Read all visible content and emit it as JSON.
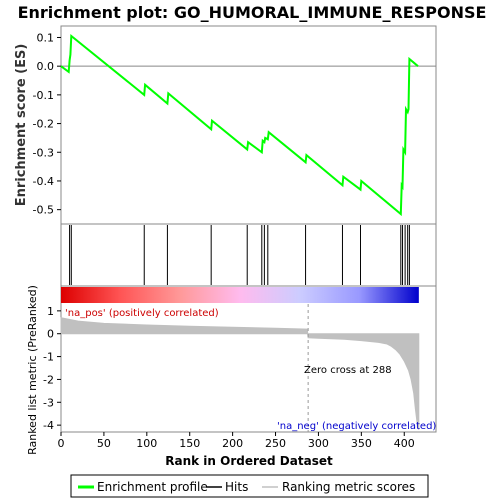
{
  "chart_data": {
    "type": "line",
    "title": "Enrichment plot: GO_HUMORAL_IMMUNE_RESPONSE",
    "top_panel": {
      "ylabel": "Enrichment score (ES)",
      "ylim": [
        -0.55,
        0.14
      ],
      "yticks": [
        0.1,
        0.0,
        -0.1,
        -0.2,
        -0.3,
        -0.4,
        -0.5
      ],
      "ytick_labels": [
        "0.1",
        "0.0",
        "-0.1",
        "-0.2",
        "-0.3",
        "-0.4",
        "-0.5"
      ],
      "zero_line": true,
      "series": [
        {
          "name": "Enrichment profile",
          "color": "#00ff00",
          "x": [
            0,
            9,
            10,
            11,
            12,
            97,
            98,
            124,
            125,
            175,
            176,
            217,
            218,
            234,
            235,
            237,
            238,
            241,
            242,
            285,
            286,
            328,
            329,
            349,
            350,
            396,
            397,
            398,
            399,
            401,
            402,
            404,
            405,
            406,
            416
          ],
          "y": [
            0.0,
            -0.02,
            0.02,
            0.04,
            0.105,
            -0.1,
            -0.065,
            -0.13,
            -0.095,
            -0.22,
            -0.19,
            -0.29,
            -0.265,
            -0.3,
            -0.26,
            -0.265,
            -0.25,
            -0.255,
            -0.23,
            -0.335,
            -0.31,
            -0.415,
            -0.385,
            -0.43,
            -0.4,
            -0.515,
            -0.415,
            -0.42,
            -0.29,
            -0.3,
            -0.15,
            -0.16,
            -0.15,
            0.025,
            0.0
          ]
        }
      ]
    },
    "hits_panel": {
      "hit_positions": [
        10,
        12,
        97,
        124,
        175,
        217,
        234,
        237,
        241,
        285,
        328,
        349,
        396,
        398,
        401,
        404,
        406
      ],
      "hit_color": "#000000"
    },
    "ranked_panel": {
      "ylabel": "Ranked list metric (PreRanked)",
      "ylim": [
        -4.3,
        1.3
      ],
      "yticks": [
        1,
        0,
        -1,
        -2,
        -3,
        -4
      ],
      "ytick_labels": [
        "1",
        "0",
        "-1",
        "-2",
        "-3",
        "-4"
      ],
      "fill_color": "#c0c0c0",
      "metric_x": [
        0,
        20,
        50,
        100,
        150,
        200,
        250,
        287,
        288,
        300,
        330,
        350,
        370,
        380,
        385,
        390,
        395,
        400,
        405,
        408,
        411,
        413,
        415,
        417
      ],
      "metric_y": [
        0.7,
        0.55,
        0.45,
        0.38,
        0.33,
        0.28,
        0.24,
        0.2,
        -0.18,
        -0.2,
        -0.24,
        -0.3,
        -0.38,
        -0.45,
        -0.55,
        -0.7,
        -0.9,
        -1.2,
        -1.6,
        -2.0,
        -2.6,
        -3.3,
        -3.9,
        -4.2
      ],
      "pos_annotation": "'na_pos' (positively correlated)",
      "neg_annotation": "'na_neg' (negatively correlated)",
      "zero_cross_label": "Zero cross at 288",
      "zero_cross_x": 288,
      "pos_annotation_color": "#cc0000",
      "neg_annotation_color": "#0000cc"
    },
    "color_bar": {
      "stops": [
        "#dd0000",
        "#ff5555",
        "#ff9999",
        "#ffbbee",
        "#ccccff",
        "#9999ff",
        "#0000cc"
      ]
    },
    "xaxis": {
      "xlabel": "Rank in Ordered Dataset",
      "xlim": [
        0,
        437
      ],
      "xticks": [
        0,
        50,
        100,
        150,
        200,
        250,
        300,
        350,
        400
      ],
      "xtick_labels": [
        "0",
        "50",
        "100",
        "150",
        "200",
        "250",
        "300",
        "350",
        "400"
      ]
    },
    "legend": {
      "placement": "bottom",
      "items": [
        {
          "name": "Enrichment profile",
          "color": "#00ff00"
        },
        {
          "name": "Hits",
          "color": "#000000"
        },
        {
          "name": "Ranking metric scores",
          "color": "#c0c0c0"
        }
      ]
    }
  }
}
